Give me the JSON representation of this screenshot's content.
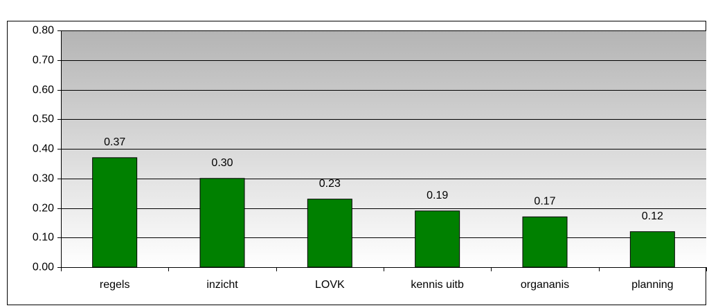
{
  "chart_data": {
    "type": "bar",
    "categories": [
      "regels",
      "inzicht",
      "LOVK",
      "kennis uitb",
      "organanis",
      "planning"
    ],
    "values": [
      0.37,
      0.3,
      0.23,
      0.19,
      0.17,
      0.12
    ],
    "value_labels": [
      "0.37",
      "0.30",
      "0.23",
      "0.19",
      "0.17",
      "0.12"
    ],
    "color": "#008000",
    "ylim": [
      0,
      0.8
    ],
    "yticks": [
      {
        "value": 0,
        "label": "0.00"
      },
      {
        "value": 0.1,
        "label": "0.10"
      },
      {
        "value": 0.2,
        "label": "0.20"
      },
      {
        "value": 0.3,
        "label": "0.30"
      },
      {
        "value": 0.4,
        "label": "0.40"
      },
      {
        "value": 0.5,
        "label": "0.50"
      },
      {
        "value": 0.6,
        "label": "0.60"
      },
      {
        "value": 0.7,
        "label": "0.70"
      },
      {
        "value": 0.8,
        "label": "0.80"
      }
    ],
    "grid": true
  }
}
